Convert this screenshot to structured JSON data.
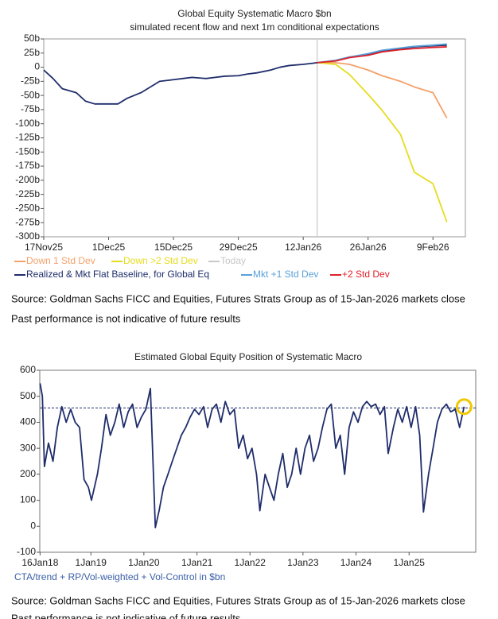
{
  "chart_data": [
    {
      "type": "line",
      "title": "Global Equity Systematic Macro $bn",
      "subtitle": "simulated recent flow and next 1m conditional expectations",
      "xlim": [
        "2025-11-17",
        "2026-02-16"
      ],
      "xticks": [
        {
          "value": "2025-11-17",
          "label": "17Nov25"
        },
        {
          "value": "2025-12-01",
          "label": "1Dec25"
        },
        {
          "value": "2025-12-15",
          "label": "15Dec25"
        },
        {
          "value": "2025-12-29",
          "label": "29Dec25"
        },
        {
          "value": "2026-01-12",
          "label": "12Jan26"
        },
        {
          "value": "2026-01-26",
          "label": "26Jan26"
        },
        {
          "value": "2026-02-09",
          "label": "9Feb26"
        }
      ],
      "ylim": [
        -300,
        50
      ],
      "yticks": [
        {
          "value": 50,
          "label": "50b"
        },
        {
          "value": 25,
          "label": "25b"
        },
        0,
        {
          "value": -25,
          "label": "-25b"
        },
        {
          "value": -50,
          "label": "-50b"
        },
        {
          "value": -75,
          "label": "-75b"
        },
        {
          "value": -100,
          "label": "-100b"
        },
        {
          "value": -125,
          "label": "-125b"
        },
        {
          "value": -150,
          "label": "-150b"
        },
        {
          "value": -175,
          "label": "-175b"
        },
        {
          "value": -200,
          "label": "-200b"
        },
        {
          "value": -225,
          "label": "-225b"
        },
        {
          "value": -250,
          "label": "-250b"
        },
        {
          "value": -275,
          "label": "-275b"
        },
        {
          "value": -300,
          "label": "-300b"
        }
      ],
      "grid": false,
      "series": [
        {
          "name": "Down 1 Std Dev",
          "color": "#f4a06a",
          "x": [
            "2026-01-15",
            "2026-01-19",
            "2026-01-22",
            "2026-01-26",
            "2026-01-29",
            "2026-02-02",
            "2026-02-05",
            "2026-02-09",
            "2026-02-12"
          ],
          "values": [
            8,
            8,
            5,
            -5,
            -15,
            -25,
            -35,
            -45,
            -90
          ]
        },
        {
          "name": "Down >2 Std Dev",
          "color": "#e6dc1e",
          "x": [
            "2026-01-15",
            "2026-01-19",
            "2026-01-22",
            "2026-01-26",
            "2026-01-29",
            "2026-02-02",
            "2026-02-05",
            "2026-02-09",
            "2026-02-12"
          ],
          "values": [
            8,
            5,
            -13,
            -48,
            -76,
            -119,
            -186,
            -206,
            -274
          ]
        },
        {
          "name": "Today",
          "color": "#c8c8c8",
          "vline": "2026-01-15"
        },
        {
          "name": "Realized & Mkt Flat Baseline, for Global Eq",
          "color": "#1f2d6b",
          "x": [
            "2025-11-17",
            "2025-11-19",
            "2025-11-21",
            "2025-11-24",
            "2025-11-26",
            "2025-11-28",
            "2025-12-01",
            "2025-12-03",
            "2025-12-05",
            "2025-12-08",
            "2025-12-10",
            "2025-12-12",
            "2025-12-15",
            "2025-12-17",
            "2025-12-19",
            "2025-12-22",
            "2025-12-24",
            "2025-12-26",
            "2025-12-29",
            "2025-12-31",
            "2026-01-02",
            "2026-01-05",
            "2026-01-07",
            "2026-01-09",
            "2026-01-12",
            "2026-01-14",
            "2026-01-15",
            "2026-01-19",
            "2026-01-22",
            "2026-01-26",
            "2026-01-29",
            "2026-02-02",
            "2026-02-05",
            "2026-02-09",
            "2026-02-12"
          ],
          "values": [
            -5,
            -20,
            -38,
            -45,
            -60,
            -65,
            -65,
            -65,
            -55,
            -45,
            -35,
            -25,
            -22,
            -20,
            -18,
            -20,
            -18,
            -16,
            -15,
            -12,
            -10,
            -5,
            0,
            3,
            5,
            7,
            8,
            12,
            18,
            22,
            28,
            33,
            36,
            38,
            39
          ]
        },
        {
          "name": "Mkt +1 Std Dev",
          "color": "#5aa0d8",
          "x": [
            "2026-01-15",
            "2026-01-19",
            "2026-01-22",
            "2026-01-26",
            "2026-01-29",
            "2026-02-02",
            "2026-02-05",
            "2026-02-09",
            "2026-02-12"
          ],
          "values": [
            8,
            12,
            18,
            24,
            30,
            34,
            37,
            39,
            41
          ]
        },
        {
          "name": "+2 Std Dev",
          "color": "#e0202a",
          "x": [
            "2026-01-15",
            "2026-01-19",
            "2026-01-22",
            "2026-01-26",
            "2026-01-29",
            "2026-02-02",
            "2026-02-05",
            "2026-02-09",
            "2026-02-12"
          ],
          "values": [
            8,
            11,
            17,
            21,
            27,
            31,
            33,
            35,
            36
          ]
        }
      ],
      "source": "Source: Goldman Sachs FICC and Equities, Futures Strats Group as of 15-Jan-2026 markets close",
      "disclaimer": "Past performance is not indicative of future results"
    },
    {
      "type": "line",
      "title": "Estimated Global Equity Position of Systematic Macro",
      "caption": "CTA/trend + RP/Vol-weighted + Vol-Control in $bn",
      "xlim": [
        "2018-01-14",
        "2026-04-05"
      ],
      "xticks": [
        {
          "value": "2018-01-16",
          "label": "16Jan18"
        },
        {
          "value": "2019-01-01",
          "label": "1Jan19"
        },
        {
          "value": "2020-01-01",
          "label": "1Jan20"
        },
        {
          "value": "2021-01-01",
          "label": "1Jan21"
        },
        {
          "value": "2022-01-01",
          "label": "1Jan22"
        },
        {
          "value": "2023-01-01",
          "label": "1Jan23"
        },
        {
          "value": "2024-01-01",
          "label": "1Jan24"
        },
        {
          "value": "2025-01-01",
          "label": "1Jan25"
        }
      ],
      "ylim": [
        -100,
        600
      ],
      "yticks": [
        -100,
        0,
        100,
        200,
        300,
        400,
        500,
        600
      ],
      "grid": false,
      "reference_line": 455,
      "reference_color": "#1f2d6b",
      "highlight_color": "#f0c800",
      "series": [
        {
          "color": "#1f2d6b",
          "x": [
            "2018-01-16",
            "2018-02-01",
            "2018-02-15",
            "2018-03-15",
            "2018-04-15",
            "2018-05-15",
            "2018-06-15",
            "2018-07-15",
            "2018-08-15",
            "2018-09-15",
            "2018-10-15",
            "2018-11-15",
            "2018-12-15",
            "2019-01-05",
            "2019-02-15",
            "2019-03-15",
            "2019-04-15",
            "2019-05-15",
            "2019-06-15",
            "2019-07-15",
            "2019-08-15",
            "2019-09-15",
            "2019-10-15",
            "2019-11-15",
            "2019-12-15",
            "2020-01-15",
            "2020-02-15",
            "2020-03-20",
            "2020-04-15",
            "2020-05-15",
            "2020-06-15",
            "2020-07-15",
            "2020-08-15",
            "2020-09-15",
            "2020-10-15",
            "2020-11-15",
            "2020-12-15",
            "2021-01-15",
            "2021-02-15",
            "2021-03-15",
            "2021-04-15",
            "2021-05-15",
            "2021-06-15",
            "2021-07-15",
            "2021-08-15",
            "2021-09-15",
            "2021-10-15",
            "2021-11-15",
            "2021-12-15",
            "2022-01-15",
            "2022-02-15",
            "2022-03-10",
            "2022-04-15",
            "2022-05-15",
            "2022-06-15",
            "2022-07-15",
            "2022-08-15",
            "2022-09-15",
            "2022-10-15",
            "2022-11-15",
            "2022-12-15",
            "2023-01-15",
            "2023-02-15",
            "2023-03-15",
            "2023-04-15",
            "2023-05-15",
            "2023-06-15",
            "2023-07-15",
            "2023-08-15",
            "2023-09-15",
            "2023-10-15",
            "2023-11-15",
            "2023-12-15",
            "2024-01-15",
            "2024-02-15",
            "2024-03-15",
            "2024-04-15",
            "2024-05-15",
            "2024-06-15",
            "2024-07-15",
            "2024-08-10",
            "2024-09-15",
            "2024-10-15",
            "2024-11-15",
            "2024-12-15",
            "2025-01-15",
            "2025-02-15",
            "2025-03-15",
            "2025-04-10",
            "2025-05-15",
            "2025-06-15",
            "2025-07-15",
            "2025-08-15",
            "2025-09-15",
            "2025-10-15",
            "2025-11-15",
            "2025-12-15",
            "2026-01-15"
          ],
          "values": [
            550,
            500,
            230,
            320,
            250,
            380,
            460,
            400,
            450,
            400,
            380,
            180,
            150,
            100,
            200,
            300,
            430,
            350,
            400,
            470,
            380,
            440,
            470,
            380,
            420,
            450,
            530,
            -5,
            60,
            150,
            200,
            250,
            300,
            350,
            380,
            420,
            450,
            430,
            460,
            380,
            450,
            470,
            400,
            480,
            430,
            450,
            300,
            350,
            260,
            300,
            200,
            60,
            200,
            150,
            100,
            200,
            280,
            150,
            200,
            300,
            200,
            300,
            350,
            250,
            300,
            380,
            450,
            470,
            300,
            350,
            200,
            380,
            440,
            400,
            460,
            480,
            460,
            470,
            430,
            460,
            280,
            380,
            450,
            400,
            460,
            380,
            460,
            350,
            55,
            200,
            300,
            400,
            450,
            470,
            440,
            450,
            380,
            460
          ]
        }
      ],
      "source": "Source: Goldman Sachs FICC and Equities, Futures Strats Group as of 15-Jan-2026 markets close",
      "disclaimer": "Past performance is not indicative of future results"
    }
  ]
}
